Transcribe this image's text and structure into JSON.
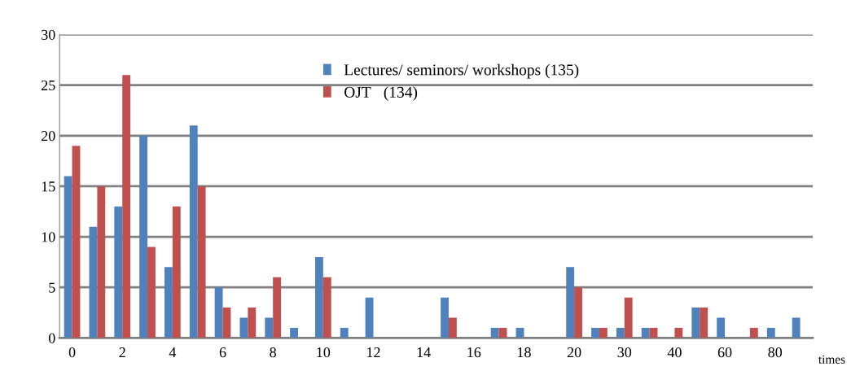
{
  "chart_data": {
    "type": "bar",
    "xlabel": "times",
    "categories": [
      "0",
      null,
      "2",
      null,
      "4",
      null,
      "6",
      null,
      "8",
      null,
      "10",
      null,
      "12",
      null,
      "14",
      null,
      "16",
      null,
      "18",
      null,
      "20",
      null,
      "30",
      null,
      "40",
      null,
      "60",
      null,
      "80",
      null
    ],
    "series": [
      {
        "name": "Lectures/ seminors/ workshops (135)",
        "color": "#4f81bd",
        "values": [
          16,
          11,
          13,
          20,
          7,
          21,
          5,
          2,
          2,
          1,
          8,
          1,
          4,
          0,
          0,
          4,
          0,
          1,
          1,
          0,
          7,
          1,
          1,
          1,
          0,
          3,
          2,
          0,
          1,
          2
        ]
      },
      {
        "name": "OJT　(134)",
        "color": "#c0504d",
        "values": [
          19,
          15,
          26,
          9,
          13,
          15,
          3,
          3,
          6,
          0,
          6,
          0,
          0,
          0,
          0,
          2,
          0,
          1,
          0,
          0,
          5,
          1,
          4,
          1,
          1,
          3,
          0,
          1,
          0,
          0
        ]
      }
    ],
    "ylim": [
      0,
      30
    ],
    "yticks": [
      0,
      5,
      10,
      15,
      20,
      25,
      30
    ],
    "grid": "y",
    "legend": "top"
  }
}
